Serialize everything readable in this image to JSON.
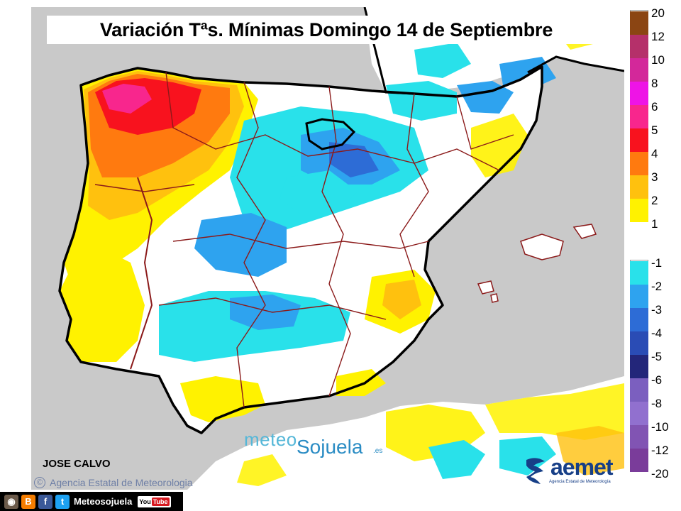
{
  "title": "Variación Tªs. Mínimas Domingo 14 de Septiembre",
  "author": "JOSE CALVO",
  "credit": "Agencia Estatal de Meteorologia",
  "watermark": {
    "meteo": "meteo",
    "sojuela": "Sojuela",
    "suffix": ".es"
  },
  "logo": {
    "name": "aemet",
    "subtitle": "Agencia Estatal de Meteorología"
  },
  "social": {
    "label": "Meteosojuela",
    "youtube": "You"
  },
  "legend": {
    "positive": [
      {
        "label": "20",
        "color": "#8b4513"
      },
      {
        "label": "12",
        "color": "#b5306a"
      },
      {
        "label": "10",
        "color": "#d3289a"
      },
      {
        "label": "8",
        "color": "#ee14e6"
      },
      {
        "label": "6",
        "color": "#f8268d"
      },
      {
        "label": "5",
        "color": "#f8121e"
      },
      {
        "label": "4",
        "color": "#ff7a0f"
      },
      {
        "label": "3",
        "color": "#ffc10e"
      },
      {
        "label": "2",
        "color": "#fff200"
      },
      {
        "label": "1",
        "color": "#ffffff"
      }
    ],
    "negative": [
      {
        "label": "-1",
        "color": "#29e1ea"
      },
      {
        "label": "-2",
        "color": "#2ea3ef"
      },
      {
        "label": "-3",
        "color": "#2d6cd6"
      },
      {
        "label": "-4",
        "color": "#2a4cb5"
      },
      {
        "label": "-5",
        "color": "#23267a"
      },
      {
        "label": "-6",
        "color": "#7b5fbf"
      },
      {
        "label": "-8",
        "color": "#9170cf"
      },
      {
        "label": "-10",
        "color": "#8154b3"
      },
      {
        "label": "-12",
        "color": "#7a3c9a"
      },
      {
        "label": "-20",
        "color": "#ffffff"
      }
    ]
  },
  "colors": {
    "sea": "#c9c9c9",
    "land": "#ffffff",
    "border": "#8b1a1a",
    "coast": "#000000",
    "warm_strong": "#ff7a0f",
    "warm": "#ffc10e",
    "warm_light": "#fff200",
    "cool": "#29e1ea",
    "cool_mid": "#2ea3ef",
    "cool_strong": "#2d6cd6",
    "hot": "#f8121e",
    "very_hot": "#f8268d"
  }
}
